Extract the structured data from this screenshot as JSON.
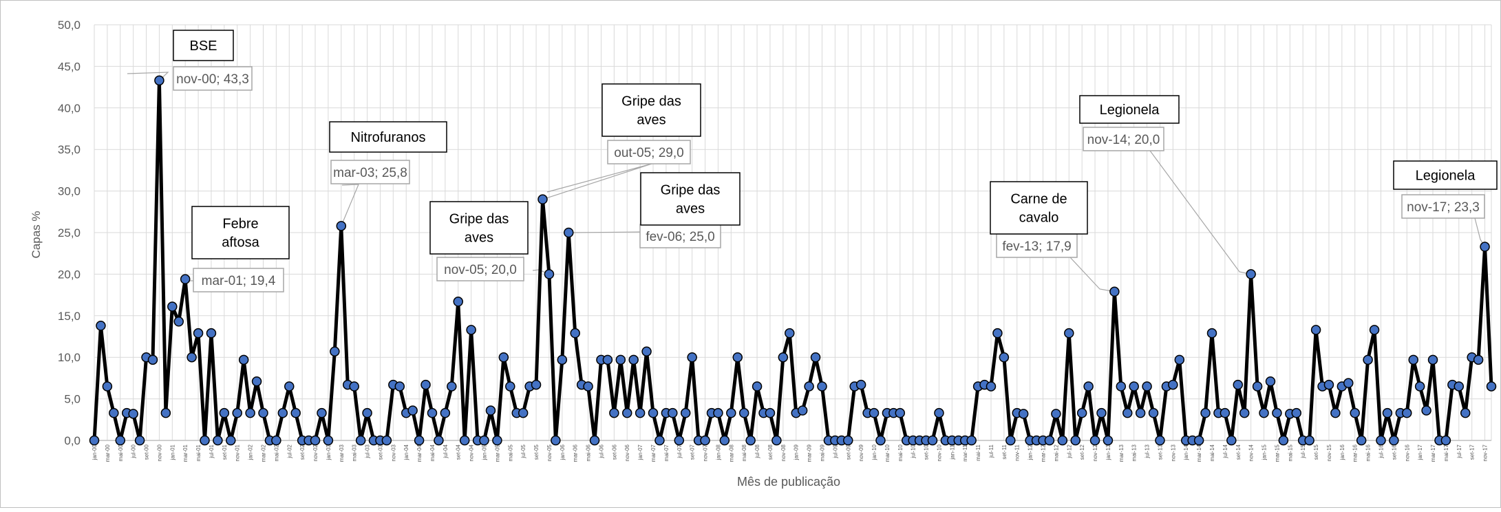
{
  "chart_data": {
    "type": "line",
    "xlabel": "Mês de publicação",
    "ylabel": "Capas %",
    "ylim": [
      0,
      50
    ],
    "yticks": [
      "0,0",
      "5,0",
      "10,0",
      "15,0",
      "20,0",
      "25,0",
      "30,0",
      "35,0",
      "40,0",
      "45,0",
      "50,0"
    ],
    "grid": true,
    "legend": "none",
    "colors": {
      "line": "#000000",
      "marker_fill": "#4472C4",
      "marker_edge": "#000000",
      "grid": "#d9d9d9",
      "label_border": "#a6a6a6",
      "label_text": "#595959",
      "box_border": "#000000"
    },
    "x_ticks": [
      "jan-00",
      "mar-00",
      "mai-00",
      "jul-00",
      "set-00",
      "nov-00",
      "jan-01",
      "mar-01",
      "mai-01",
      "jul-01",
      "set-01",
      "nov-01",
      "jan-02",
      "mar-02",
      "mai-02",
      "jul-02",
      "set-02",
      "nov-02",
      "jan-03",
      "mar-03",
      "mai-03",
      "jul-03",
      "set-03",
      "nov-03",
      "jan-04",
      "mar-04",
      "mai-04",
      "jul-04",
      "set-04",
      "nov-04",
      "jan-05",
      "mar-05",
      "mai-05",
      "jul-05",
      "set-05",
      "nov-05",
      "jan-06",
      "mar-06",
      "mai-06",
      "jul-06",
      "set-06",
      "nov-06",
      "jan-07",
      "mar-07",
      "mai-07",
      "jul-07",
      "set-07",
      "nov-07",
      "jan-08",
      "mar-08",
      "mai-08",
      "jul-08",
      "set-08",
      "nov-08",
      "jan-09",
      "mar-09",
      "mai-09",
      "jul-09",
      "set-09",
      "nov-09",
      "jan-10",
      "mar-10",
      "mai-10",
      "jul-10",
      "set-10",
      "nov-10",
      "jan-11",
      "mar-11",
      "mai-11",
      "jul-11",
      "set-11",
      "nov-11",
      "jan-12",
      "mar-12",
      "mai-12",
      "jul-12",
      "set-12",
      "nov-12",
      "jan-13",
      "mar-13",
      "mai-13",
      "jul-13",
      "set-13",
      "nov-13",
      "jan-14",
      "mar-14",
      "mai-14",
      "jul-14",
      "set-14",
      "nov-14",
      "jan-15",
      "mar-15",
      "mai-15",
      "jul-15",
      "set-15",
      "nov-15",
      "jan-16",
      "mar-16",
      "mai-16",
      "jul-16",
      "set-16",
      "nov-16",
      "jan-17",
      "mar-17",
      "mai-17",
      "jul-17",
      "set-17",
      "nov-17"
    ],
    "series": [
      {
        "values": [
          0,
          13.8,
          6.5,
          3.3,
          0,
          3.3,
          3.2,
          0,
          10,
          9.7,
          43.3,
          3.3,
          16.1,
          14.3,
          19.4,
          10,
          12.9,
          0,
          12.9,
          0,
          3.3,
          0,
          3.3,
          9.7,
          3.3,
          7.1,
          3.3,
          0,
          0,
          3.3,
          6.5,
          3.3,
          0,
          0,
          0,
          3.3,
          0,
          10.7,
          25.8,
          6.7,
          6.5,
          0,
          3.3,
          0,
          0,
          0,
          6.7,
          6.5,
          3.3,
          3.6,
          0,
          6.7,
          3.3,
          0,
          3.3,
          6.5,
          16.7,
          0,
          13.3,
          0,
          0,
          3.6,
          0,
          10,
          6.5,
          3.3,
          3.3,
          6.5,
          6.7,
          29,
          20,
          0,
          9.7,
          25,
          12.9,
          6.7,
          6.5,
          0,
          9.7,
          9.7,
          3.3,
          9.7,
          3.3,
          9.7,
          3.3,
          10.7,
          3.3,
          0,
          3.3,
          3.3,
          0,
          3.3,
          10,
          0,
          0,
          3.3,
          3.3,
          0,
          3.3,
          10,
          3.3,
          0,
          6.5,
          3.3,
          3.3,
          0,
          10,
          12.9,
          3.3,
          3.6,
          6.5,
          10,
          6.5,
          0,
          0,
          0,
          0,
          6.5,
          6.7,
          3.3,
          3.3,
          0,
          3.3,
          3.3,
          3.3,
          0,
          0,
          0,
          0,
          0,
          3.3,
          0,
          0,
          0,
          0,
          0,
          6.5,
          6.7,
          6.5,
          12.9,
          10,
          0,
          3.3,
          3.2,
          0,
          0,
          0,
          0,
          3.2,
          0,
          12.9,
          0,
          3.3,
          6.5,
          0,
          3.3,
          0,
          17.9,
          6.5,
          3.3,
          6.5,
          3.3,
          6.5,
          3.3,
          0,
          6.5,
          6.7,
          9.7,
          0,
          0,
          0,
          3.3,
          12.9,
          3.3,
          3.3,
          0,
          6.7,
          3.3,
          20,
          6.5,
          3.3,
          7.1,
          3.3,
          0,
          3.2,
          3.3,
          0,
          0,
          13.3,
          6.5,
          6.7,
          3.3,
          6.5,
          6.9,
          3.3,
          0,
          9.7,
          13.3,
          0,
          3.3,
          0,
          3.3,
          3.3,
          9.7,
          6.5,
          3.6,
          9.7,
          0,
          0,
          6.7,
          6.5,
          3.3,
          10,
          9.7,
          23.3,
          6.5
        ]
      }
    ],
    "data_labels": [
      {
        "index": 10,
        "text": "nov-00; 43,3"
      },
      {
        "index": 14,
        "text": "mar-01; 19,4"
      },
      {
        "index": 38,
        "text": "mar-03; 25,8"
      },
      {
        "index": 69,
        "text": "out-05; 29,0"
      },
      {
        "index": 70,
        "text": "nov-05; 20,0"
      },
      {
        "index": 73,
        "text": "fev-06; 25,0"
      },
      {
        "index": 157,
        "text": "fev-13; 17,9"
      },
      {
        "index": 178,
        "text": "nov-14; 20,0"
      },
      {
        "index": 214,
        "text": "nov-17; 23,3"
      }
    ],
    "annotations": [
      {
        "lines": [
          "BSE"
        ]
      },
      {
        "lines": [
          "Febre",
          "aftosa"
        ]
      },
      {
        "lines": [
          "Nitrofuranos"
        ]
      },
      {
        "lines": [
          "Gripe das",
          "aves"
        ]
      },
      {
        "lines": [
          "Gripe das",
          "aves"
        ]
      },
      {
        "lines": [
          "Gripe das",
          "aves"
        ]
      },
      {
        "lines": [
          "Carne de",
          "cavalo"
        ]
      },
      {
        "lines": [
          "Legionela"
        ]
      },
      {
        "lines": [
          "Legionela"
        ]
      }
    ]
  }
}
